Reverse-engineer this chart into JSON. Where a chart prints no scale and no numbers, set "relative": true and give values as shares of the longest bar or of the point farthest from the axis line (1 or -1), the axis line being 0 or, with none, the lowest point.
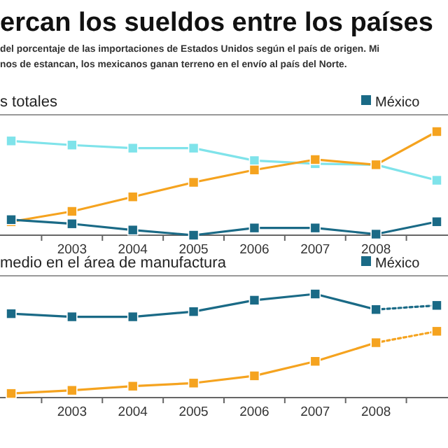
{
  "chart_data": [
    {
      "type": "line",
      "title": "ercan los sueldos entre los países",
      "subtitle": "del porcentaje de las importaciones de Estados Unidos según el país de origen. Mi\nnos de estancan, los mexicanos ganan terreno en el envío al país del Norte.",
      "annotations": [
        "s totales"
      ],
      "relative": true,
      "marker": "square",
      "legend": "top right",
      "categories": [
        null,
        "2003",
        "2004",
        "2005",
        "2006",
        "2007",
        "2008",
        null
      ],
      "series": [
        {
          "color": "#7fe3ea",
          "values": [
            0.91,
            0.87,
            0.84,
            0.84,
            0.72,
            0.69,
            0.68,
            0.53
          ]
        },
        {
          "color": "#f5a31f",
          "values": [
            0.13,
            0.23,
            0.37,
            0.51,
            0.63,
            0.73,
            0.68,
            1
          ]
        },
        {
          "name": "México",
          "color": "#1a6a86",
          "values": [
            0.15,
            0.11,
            0.05,
            0,
            0.07,
            0.07,
            0.01,
            0.13
          ]
        }
      ]
    },
    {
      "type": "line",
      "annotations": [
        "medio en el área de manufactura"
      ],
      "relative": true,
      "marker": "square",
      "legend": "top right",
      "categories": [
        null,
        "2003",
        "2004",
        "2005",
        "2006",
        "2007",
        "2008",
        null
      ],
      "series": [
        {
          "name": "México",
          "color": "#1a6a86",
          "values": [
            0.81,
            0.78,
            0.78,
            0.83,
            0.94,
            1,
            0.85,
            null
          ]
        },
        {
          "color": "#1a6a86",
          "line_style": "dotted",
          "values": [
            null,
            null,
            null,
            null,
            null,
            null,
            0.85,
            0.89
          ]
        },
        {
          "color": "#f5a31f",
          "values": [
            0.04,
            0.07,
            0.11,
            0.14,
            0.21,
            0.35,
            0.53,
            null
          ]
        },
        {
          "color": "#f5a31f",
          "line_style": "dotted",
          "values": [
            null,
            null,
            null,
            null,
            null,
            null,
            0.53,
            0.64
          ]
        }
      ]
    }
  ]
}
